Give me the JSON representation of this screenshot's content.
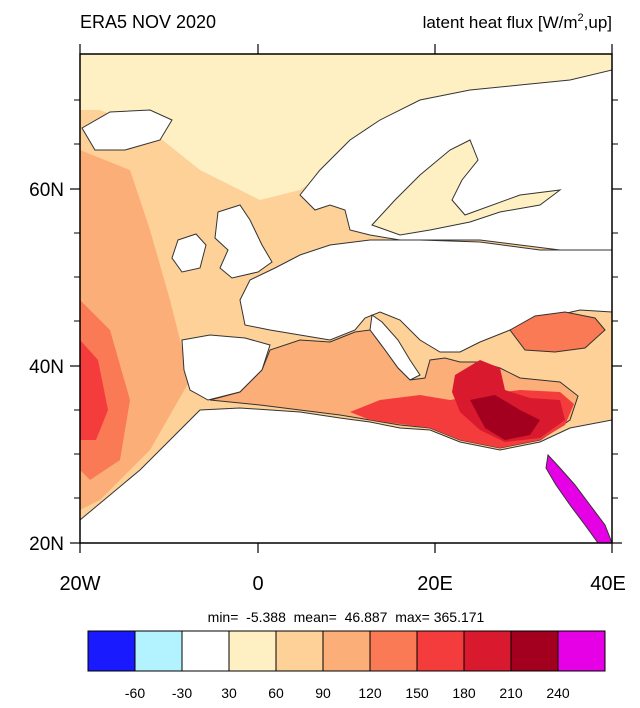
{
  "header": {
    "title_left": "ERA5 NOV 2020",
    "title_right_main": "latent heat flux [W/m",
    "title_right_sup": "2",
    "title_right_tail": ",up]"
  },
  "axes": {
    "lat_labels": [
      "20N",
      "40N",
      "60N"
    ],
    "lon_labels": [
      "20W",
      "0",
      "20E",
      "40E"
    ]
  },
  "stats": {
    "text": "min=  -5.388  mean=  46.887  max= 365.171"
  },
  "colorbar": {
    "colors": [
      "#1a1aff",
      "#b3f2ff",
      "#ffffff",
      "#fff0c4",
      "#fdd197",
      "#fcae79",
      "#f97a55",
      "#f43c3c",
      "#d9192e",
      "#a3001f",
      "#e600e6"
    ],
    "labels": [
      "-60",
      "-30",
      "30",
      "60",
      "90",
      "120",
      "150",
      "180",
      "210",
      "240"
    ]
  },
  "map_colors": {
    "land": "#ffffff",
    "c30": "#fff0c4",
    "c60": "#fdd197",
    "c90": "#fcae79",
    "c120": "#f97a55",
    "c150": "#f43c3c",
    "c180": "#d9192e",
    "c210": "#a3001f",
    "c240": "#e600e6",
    "coast": "#333333"
  }
}
